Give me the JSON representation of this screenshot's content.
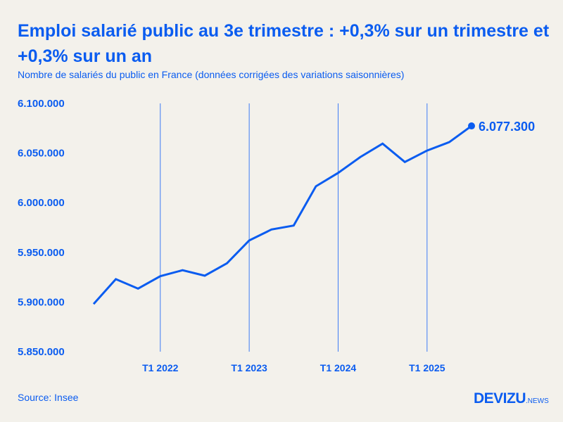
{
  "title": "Emploi salarié public au 3e trimestre : +0,3% sur un trimestre et +0,3% sur un an",
  "subtitle": "Nombre de salariés du public en France (données corrigées des variations saisonnières)",
  "source": "Source: Insee",
  "logo": {
    "main": "DEVIZU",
    "suffix": ".NEWS"
  },
  "colors": {
    "line": "#0a5cf0",
    "background": "#f3f1eb",
    "text": "#0a5cf0"
  },
  "chart_data": {
    "type": "line",
    "title": "Emploi salarié public au 3e trimestre : +0,3% sur un trimestre et +0,3% sur un an",
    "subtitle": "Nombre de salariés du public en France (données corrigées des variations saisonnières)",
    "x": [
      "T2 2021",
      "T3 2021",
      "T4 2021",
      "T1 2022",
      "T2 2022",
      "T3 2022",
      "T4 2022",
      "T1 2023",
      "T2 2023",
      "T3 2023",
      "T4 2023",
      "T1 2024",
      "T2 2024",
      "T3 2024",
      "T4 2024",
      "T1 2025",
      "T2 2025",
      "T3 2025"
    ],
    "series": [
      {
        "values": [
          5898000,
          5923000,
          5913500,
          5926000,
          5932000,
          5926500,
          5939000,
          5962000,
          5973000,
          5977000,
          6016500,
          6030000,
          6046000,
          6059500,
          6041000,
          6052500,
          6061000,
          6077300
        ]
      }
    ],
    "ylim": [
      5850000,
      6100000
    ],
    "yticks": [
      {
        "v": 6100000,
        "label": "6.100.000"
      },
      {
        "v": 6050000,
        "label": "6.050.000"
      },
      {
        "v": 6000000,
        "label": "6.000.000"
      },
      {
        "v": 5950000,
        "label": "5.950.000"
      },
      {
        "v": 5900000,
        "label": "5.900.000"
      },
      {
        "v": 5850000,
        "label": "5.850.000"
      }
    ],
    "xticks": [
      {
        "index": 3,
        "label": "T1 2022"
      },
      {
        "index": 7,
        "label": "T1 2023"
      },
      {
        "index": 11,
        "label": "T1 2024"
      },
      {
        "index": 15,
        "label": "T1 2025"
      }
    ],
    "last_label": "6.077.300",
    "grid": "vertical at T1 ticks",
    "xlabel": "",
    "ylabel": ""
  }
}
